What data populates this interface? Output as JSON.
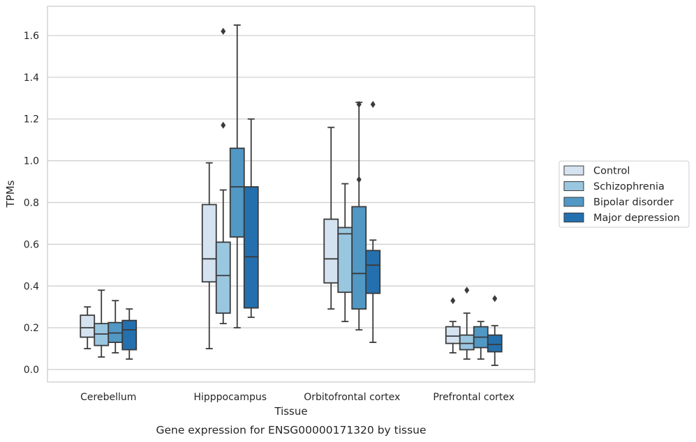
{
  "chart_data": {
    "type": "boxplot",
    "caption": "Gene expression for ENSG00000171320 by tissue",
    "xlabel": "Tissue",
    "ylabel": "TPMs",
    "ylim": [
      -0.06,
      1.74
    ],
    "yticks": [
      0.0,
      0.2,
      0.4,
      0.6,
      0.8,
      1.0,
      1.2,
      1.4,
      1.6
    ],
    "ytick_labels": [
      "0.0",
      "0.2",
      "0.4",
      "0.6",
      "0.8",
      "1.0",
      "1.2",
      "1.4",
      "1.6"
    ],
    "grid": "horizontal",
    "legend_position": "right, outside plot",
    "categories": [
      "Cerebellum",
      "Hipppocampus",
      "Orbitofrontal cortex",
      "Prefrontal cortex"
    ],
    "series": [
      {
        "name": "Control",
        "color": "#d5e3f1",
        "boxes": [
          {
            "whislo": 0.1,
            "q1": 0.155,
            "med": 0.2,
            "q3": 0.26,
            "whishi": 0.3,
            "fliers": []
          },
          {
            "whislo": 0.1,
            "q1": 0.42,
            "med": 0.53,
            "q3": 0.79,
            "whishi": 0.99,
            "fliers": []
          },
          {
            "whislo": 0.29,
            "q1": 0.415,
            "med": 0.53,
            "q3": 0.72,
            "whishi": 1.16,
            "fliers": []
          },
          {
            "whislo": 0.08,
            "q1": 0.125,
            "med": 0.16,
            "q3": 0.205,
            "whishi": 0.23,
            "fliers": [
              0.33
            ]
          }
        ]
      },
      {
        "name": "Schizophrenia",
        "color": "#9ac7e0",
        "boxes": [
          {
            "whislo": 0.06,
            "q1": 0.115,
            "med": 0.17,
            "q3": 0.22,
            "whishi": 0.38,
            "fliers": []
          },
          {
            "whislo": 0.22,
            "q1": 0.27,
            "med": 0.45,
            "q3": 0.61,
            "whishi": 0.86,
            "fliers": [
              1.17,
              1.62
            ]
          },
          {
            "whislo": 0.23,
            "q1": 0.37,
            "med": 0.65,
            "q3": 0.68,
            "whishi": 0.89,
            "fliers": []
          },
          {
            "whislo": 0.05,
            "q1": 0.095,
            "med": 0.125,
            "q3": 0.165,
            "whishi": 0.27,
            "fliers": [
              0.38
            ]
          }
        ]
      },
      {
        "name": "Bipolar disorder",
        "color": "#5198c5",
        "boxes": [
          {
            "whislo": 0.08,
            "q1": 0.13,
            "med": 0.175,
            "q3": 0.225,
            "whishi": 0.33,
            "fliers": []
          },
          {
            "whislo": 0.2,
            "q1": 0.635,
            "med": 0.875,
            "q3": 1.06,
            "whishi": 1.65,
            "fliers": []
          },
          {
            "whislo": 0.19,
            "q1": 0.29,
            "med": 0.46,
            "q3": 0.78,
            "whishi": 1.28,
            "fliers": [
              0.91,
              1.27
            ]
          },
          {
            "whislo": 0.05,
            "q1": 0.105,
            "med": 0.155,
            "q3": 0.205,
            "whishi": 0.23,
            "fliers": []
          }
        ]
      },
      {
        "name": "Major depression",
        "color": "#2470ae",
        "boxes": [
          {
            "whislo": 0.05,
            "q1": 0.095,
            "med": 0.19,
            "q3": 0.235,
            "whishi": 0.29,
            "fliers": []
          },
          {
            "whislo": 0.25,
            "q1": 0.295,
            "med": 0.54,
            "q3": 0.875,
            "whishi": 1.2,
            "fliers": []
          },
          {
            "whislo": 0.13,
            "q1": 0.365,
            "med": 0.5,
            "q3": 0.57,
            "whishi": 0.62,
            "fliers": [
              1.27
            ]
          },
          {
            "whislo": 0.02,
            "q1": 0.085,
            "med": 0.12,
            "q3": 0.165,
            "whishi": 0.21,
            "fliers": [
              0.34
            ]
          }
        ]
      }
    ]
  }
}
